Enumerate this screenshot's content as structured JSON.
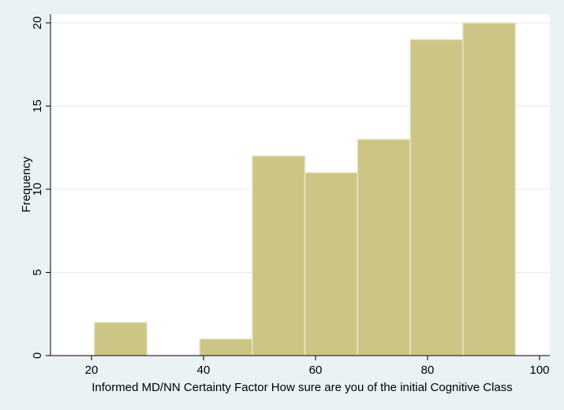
{
  "chart_data": {
    "type": "bar",
    "subtype": "histogram",
    "bins": [
      {
        "start": 20.5,
        "end": 29.9,
        "value": 2
      },
      {
        "start": 29.9,
        "end": 39.3,
        "value": 0
      },
      {
        "start": 39.3,
        "end": 48.7,
        "value": 1
      },
      {
        "start": 48.7,
        "end": 58.1,
        "value": 12
      },
      {
        "start": 58.1,
        "end": 67.5,
        "value": 11
      },
      {
        "start": 67.5,
        "end": 76.9,
        "value": 13
      },
      {
        "start": 76.9,
        "end": 86.3,
        "value": 19
      },
      {
        "start": 86.3,
        "end": 95.7,
        "value": 20
      }
    ],
    "xlabel": "Informed MD/NN Certainty Factor  How sure are you of the initial Cognitive Class",
    "ylabel": "Frequency",
    "xlim": [
      13.4,
      101
    ],
    "ylim": [
      0,
      20.3
    ],
    "xticks": [
      20,
      40,
      60,
      80,
      100
    ],
    "yticks": [
      0,
      5,
      10,
      15,
      20
    ],
    "grid": "horizontal",
    "colors": {
      "background": "#eaf2f3",
      "plot_background": "#ffffff",
      "bar_fill": "#cdc585",
      "bar_stroke": "#eae6c8",
      "grid": "#e3e9eb",
      "axis": "#000000"
    }
  }
}
